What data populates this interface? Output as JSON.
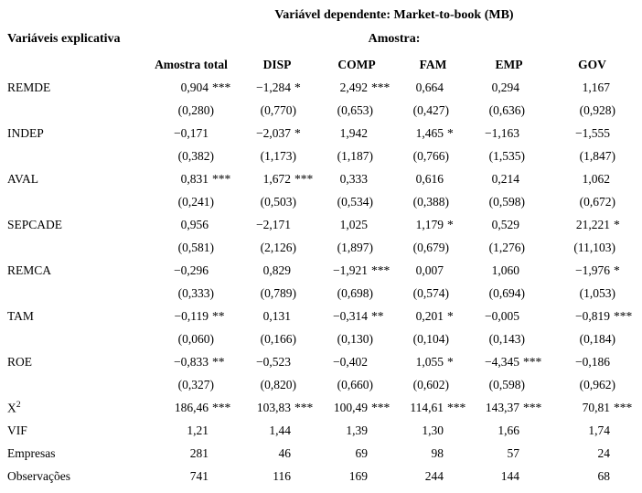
{
  "title": "Variável dependente: Market-to-book (MB)",
  "header": {
    "left_label": "Variáveis explicativa",
    "sample_label": "Amostra:"
  },
  "columns": [
    "Amostra total",
    "DISP",
    "COMP",
    "FAM",
    "EMP",
    "GOV"
  ],
  "rows": [
    {
      "type": "coef",
      "label": "REMDE",
      "cells": [
        [
          "0,904",
          "***"
        ],
        [
          "−1,284",
          "*"
        ],
        [
          "2,492",
          "***"
        ],
        [
          "0,664",
          ""
        ],
        [
          "0,294",
          ""
        ],
        [
          "1,167",
          ""
        ]
      ]
    },
    {
      "type": "se",
      "label": "",
      "cells": [
        [
          "(0,280)",
          ""
        ],
        [
          "(0,770)",
          ""
        ],
        [
          "(0,653)",
          ""
        ],
        [
          "(0,427)",
          ""
        ],
        [
          "(0,636)",
          ""
        ],
        [
          "(0,928)",
          ""
        ]
      ]
    },
    {
      "type": "coef",
      "label": "INDEP",
      "cells": [
        [
          "−0,171",
          ""
        ],
        [
          "−2,037",
          "*"
        ],
        [
          "1,942",
          ""
        ],
        [
          "1,465",
          "*"
        ],
        [
          "−1,163",
          ""
        ],
        [
          "−1,555",
          ""
        ]
      ]
    },
    {
      "type": "se",
      "label": "",
      "cells": [
        [
          "(0,382)",
          ""
        ],
        [
          "(1,173)",
          ""
        ],
        [
          "(1,187)",
          ""
        ],
        [
          "(0,766)",
          ""
        ],
        [
          "(1,535)",
          ""
        ],
        [
          "(1,847)",
          ""
        ]
      ]
    },
    {
      "type": "coef",
      "label": "AVAL",
      "cells": [
        [
          "0,831",
          "***"
        ],
        [
          "1,672",
          "***"
        ],
        [
          "0,333",
          ""
        ],
        [
          "0,616",
          ""
        ],
        [
          "0,214",
          ""
        ],
        [
          "1,062",
          ""
        ]
      ]
    },
    {
      "type": "se",
      "label": "",
      "cells": [
        [
          "(0,241)",
          ""
        ],
        [
          "(0,503)",
          ""
        ],
        [
          "(0,534)",
          ""
        ],
        [
          "(0,388)",
          ""
        ],
        [
          "(0,598)",
          ""
        ],
        [
          "(0,672)",
          ""
        ]
      ]
    },
    {
      "type": "coef",
      "label": "SEPCADE",
      "cells": [
        [
          "0,956",
          ""
        ],
        [
          "−2,171",
          ""
        ],
        [
          "1,025",
          ""
        ],
        [
          "1,179",
          "*"
        ],
        [
          "0,529",
          ""
        ],
        [
          "21,221",
          "*"
        ]
      ]
    },
    {
      "type": "se",
      "label": "",
      "cells": [
        [
          "(0,581)",
          ""
        ],
        [
          "(2,126)",
          ""
        ],
        [
          "(1,897)",
          ""
        ],
        [
          "(0,679)",
          ""
        ],
        [
          "(1,276)",
          ""
        ],
        [
          "(11,103)",
          ""
        ]
      ]
    },
    {
      "type": "coef",
      "label": "REMCA",
      "cells": [
        [
          "−0,296",
          ""
        ],
        [
          "0,829",
          ""
        ],
        [
          "−1,921",
          "***"
        ],
        [
          "0,007",
          ""
        ],
        [
          "1,060",
          ""
        ],
        [
          "−1,976",
          "*"
        ]
      ]
    },
    {
      "type": "se",
      "label": "",
      "cells": [
        [
          "(0,333)",
          ""
        ],
        [
          "(0,789)",
          ""
        ],
        [
          "(0,698)",
          ""
        ],
        [
          "(0,574)",
          ""
        ],
        [
          "(0,694)",
          ""
        ],
        [
          "(1,053)",
          ""
        ]
      ]
    },
    {
      "type": "coef",
      "label": "TAM",
      "cells": [
        [
          "−0,119",
          "**"
        ],
        [
          "0,131",
          ""
        ],
        [
          "−0,314",
          "**"
        ],
        [
          "0,201",
          "*"
        ],
        [
          "−0,005",
          ""
        ],
        [
          "−0,819",
          "***"
        ]
      ]
    },
    {
      "type": "se",
      "label": "",
      "cells": [
        [
          "(0,060)",
          ""
        ],
        [
          "(0,166)",
          ""
        ],
        [
          "(0,130)",
          ""
        ],
        [
          "(0,104)",
          ""
        ],
        [
          "(0,143)",
          ""
        ],
        [
          "(0,184)",
          ""
        ]
      ]
    },
    {
      "type": "coef",
      "label": "ROE",
      "cells": [
        [
          "−0,833",
          "**"
        ],
        [
          "−0,523",
          ""
        ],
        [
          "−0,402",
          ""
        ],
        [
          "1,055",
          "*"
        ],
        [
          "−4,345",
          "***"
        ],
        [
          "−0,186",
          ""
        ]
      ]
    },
    {
      "type": "se",
      "label": "",
      "cells": [
        [
          "(0,327)",
          ""
        ],
        [
          "(0,820)",
          ""
        ],
        [
          "(0,660)",
          ""
        ],
        [
          "(0,602)",
          ""
        ],
        [
          "(0,598)",
          ""
        ],
        [
          "(0,962)",
          ""
        ]
      ]
    },
    {
      "type": "stat",
      "label": "X",
      "sup": "2",
      "cells": [
        [
          "186,46",
          "***"
        ],
        [
          "103,83",
          "***"
        ],
        [
          "100,49",
          "***"
        ],
        [
          "114,61",
          "***"
        ],
        [
          "143,37",
          "***"
        ],
        [
          "70,81",
          "***"
        ]
      ]
    },
    {
      "type": "stat",
      "label": "VIF",
      "cells": [
        [
          "1,21",
          ""
        ],
        [
          "1,44",
          ""
        ],
        [
          "1,39",
          ""
        ],
        [
          "1,30",
          ""
        ],
        [
          "1,66",
          ""
        ],
        [
          "1,74",
          ""
        ]
      ]
    },
    {
      "type": "stat",
      "label": "Empresas",
      "cells": [
        [
          "281",
          ""
        ],
        [
          "46",
          ""
        ],
        [
          "69",
          ""
        ],
        [
          "98",
          ""
        ],
        [
          "57",
          ""
        ],
        [
          "24",
          ""
        ]
      ]
    },
    {
      "type": "stat",
      "label": "Observações",
      "cells": [
        [
          "741",
          ""
        ],
        [
          "116",
          ""
        ],
        [
          "169",
          ""
        ],
        [
          "244",
          ""
        ],
        [
          "144",
          ""
        ],
        [
          "68",
          ""
        ]
      ]
    }
  ]
}
